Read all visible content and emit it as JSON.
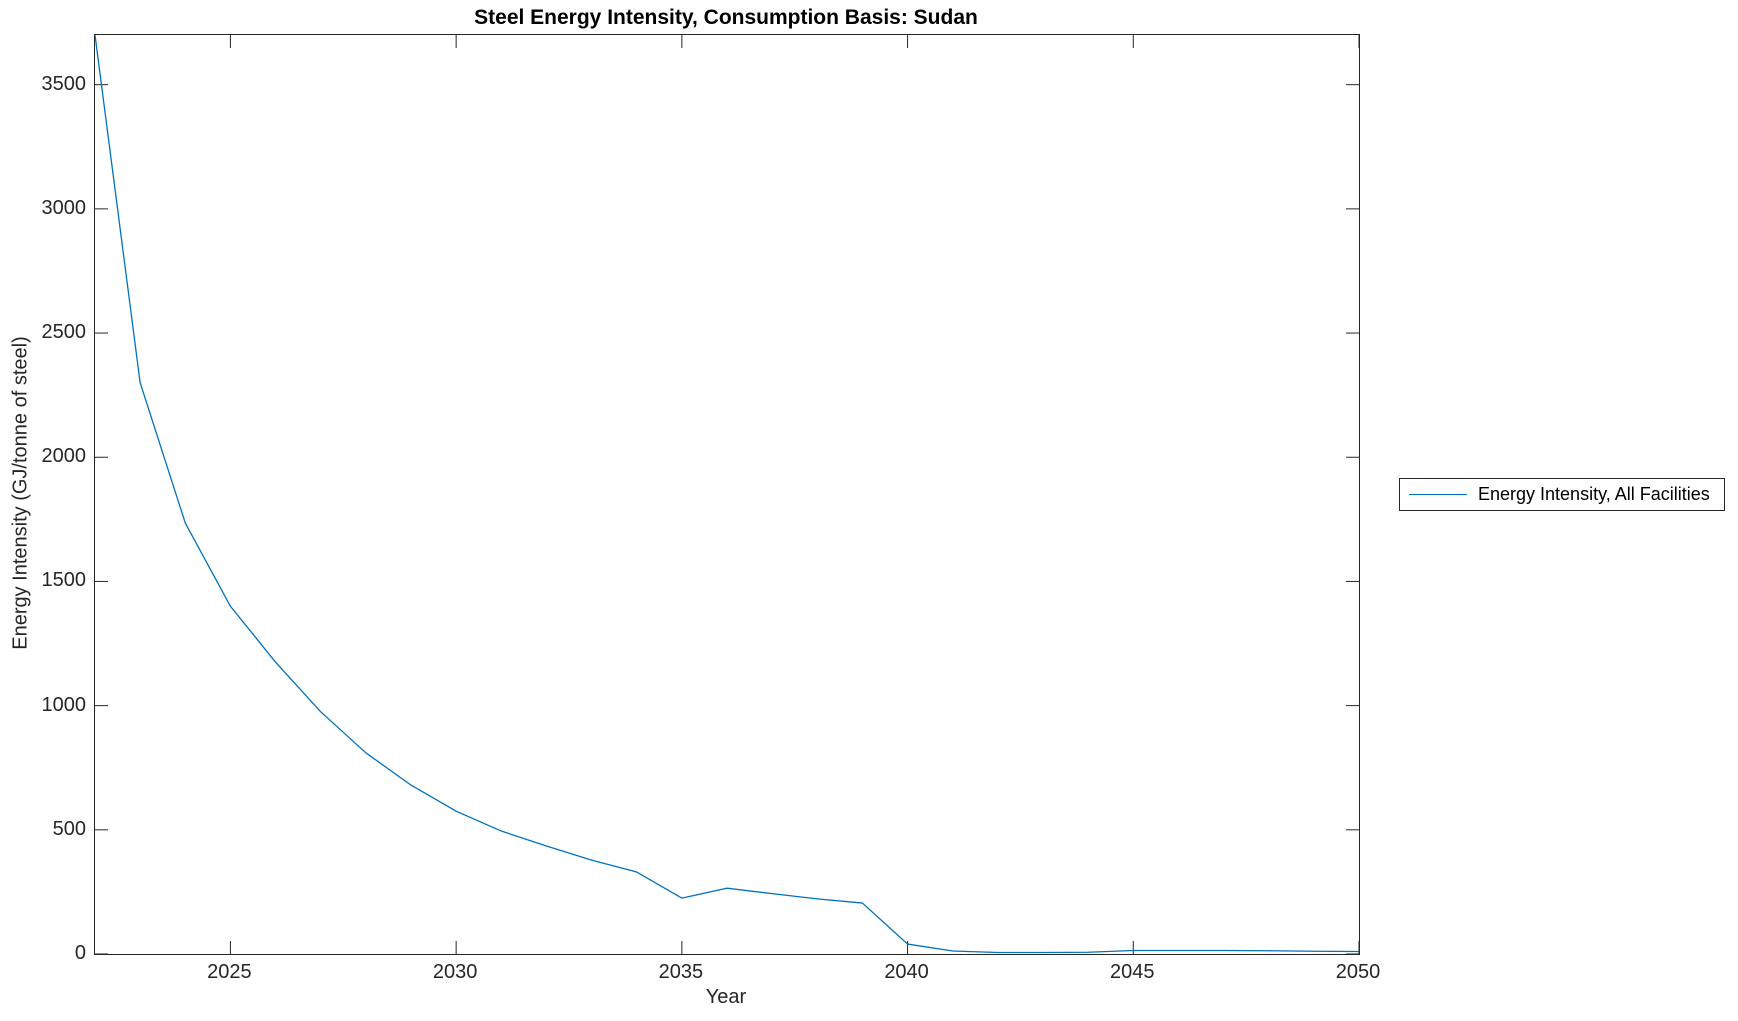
{
  "figure": {
    "title": "Steel Energy Intensity, Consumption Basis: Sudan"
  },
  "axes": {
    "xlabel": "Year",
    "ylabel": "Energy Intensity (GJ/tonne of steel)"
  },
  "legend": {
    "label": "Energy Intensity, All Facilities"
  },
  "colors": {
    "line": "#0072BD",
    "axis": "#262626",
    "title": "#000000"
  },
  "chart_data": {
    "type": "line",
    "title": "Steel Energy Intensity, Consumption Basis: Sudan",
    "xlabel": "Year",
    "ylabel": "Energy Intensity (GJ/tonne of steel)",
    "xlim": [
      2022,
      2050
    ],
    "ylim": [
      0,
      3700
    ],
    "xticks": [
      2025,
      2030,
      2035,
      2040,
      2045,
      2050
    ],
    "yticks": [
      0,
      500,
      1000,
      1500,
      2000,
      2500,
      3000,
      3500
    ],
    "grid": false,
    "legend_position": "right-outside",
    "series": [
      {
        "name": "Energy Intensity, All Facilities",
        "color": "#0072BD",
        "x": [
          2022,
          2023,
          2024,
          2025,
          2026,
          2027,
          2028,
          2029,
          2030,
          2031,
          2032,
          2033,
          2034,
          2035,
          2036,
          2037,
          2038,
          2039,
          2040,
          2041,
          2042,
          2043,
          2044,
          2045,
          2046,
          2047,
          2048,
          2049,
          2050
        ],
        "y": [
          3700,
          2300,
          1735,
          1400,
          1175,
          975,
          810,
          680,
          575,
          495,
          435,
          378,
          330,
          225,
          265,
          243,
          222,
          205,
          40,
          12,
          6,
          6,
          7,
          14,
          14,
          14,
          13,
          11,
          10
        ]
      }
    ]
  }
}
